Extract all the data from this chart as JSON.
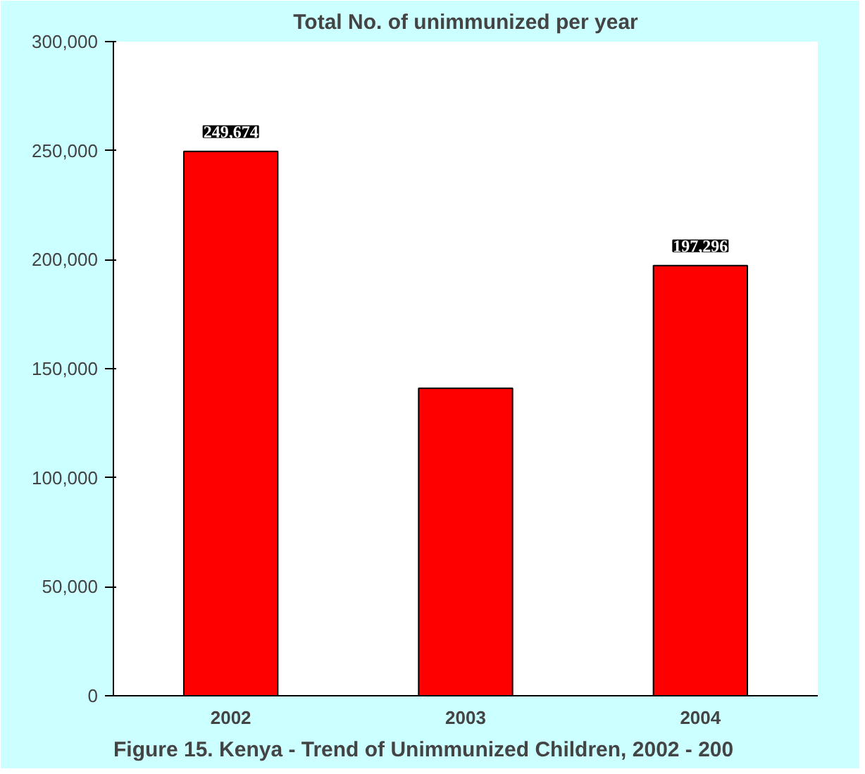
{
  "chart_data": {
    "type": "bar",
    "title": "Total No. of unimmunized per year",
    "categories": [
      "2002",
      "2003",
      "2004"
    ],
    "values": [
      249674,
      141000,
      197296
    ],
    "value_labels": [
      "249,674",
      null,
      "197,296"
    ],
    "color": "#ff0000",
    "ylim": [
      0,
      300000
    ],
    "yticks": [
      {
        "value": 0,
        "label": "0"
      },
      {
        "value": 50000,
        "label": "50,000"
      },
      {
        "value": 100000,
        "label": "100,000"
      },
      {
        "value": 150000,
        "label": "150,000"
      },
      {
        "value": 200000,
        "label": "200,000"
      },
      {
        "value": 250000,
        "label": "250,000"
      },
      {
        "value": 300000,
        "label": "300,000"
      }
    ],
    "grid": false,
    "annotations": [
      "Figure 15. Kenya - Trend of Unimmunized Children, 2002 - 200"
    ]
  }
}
